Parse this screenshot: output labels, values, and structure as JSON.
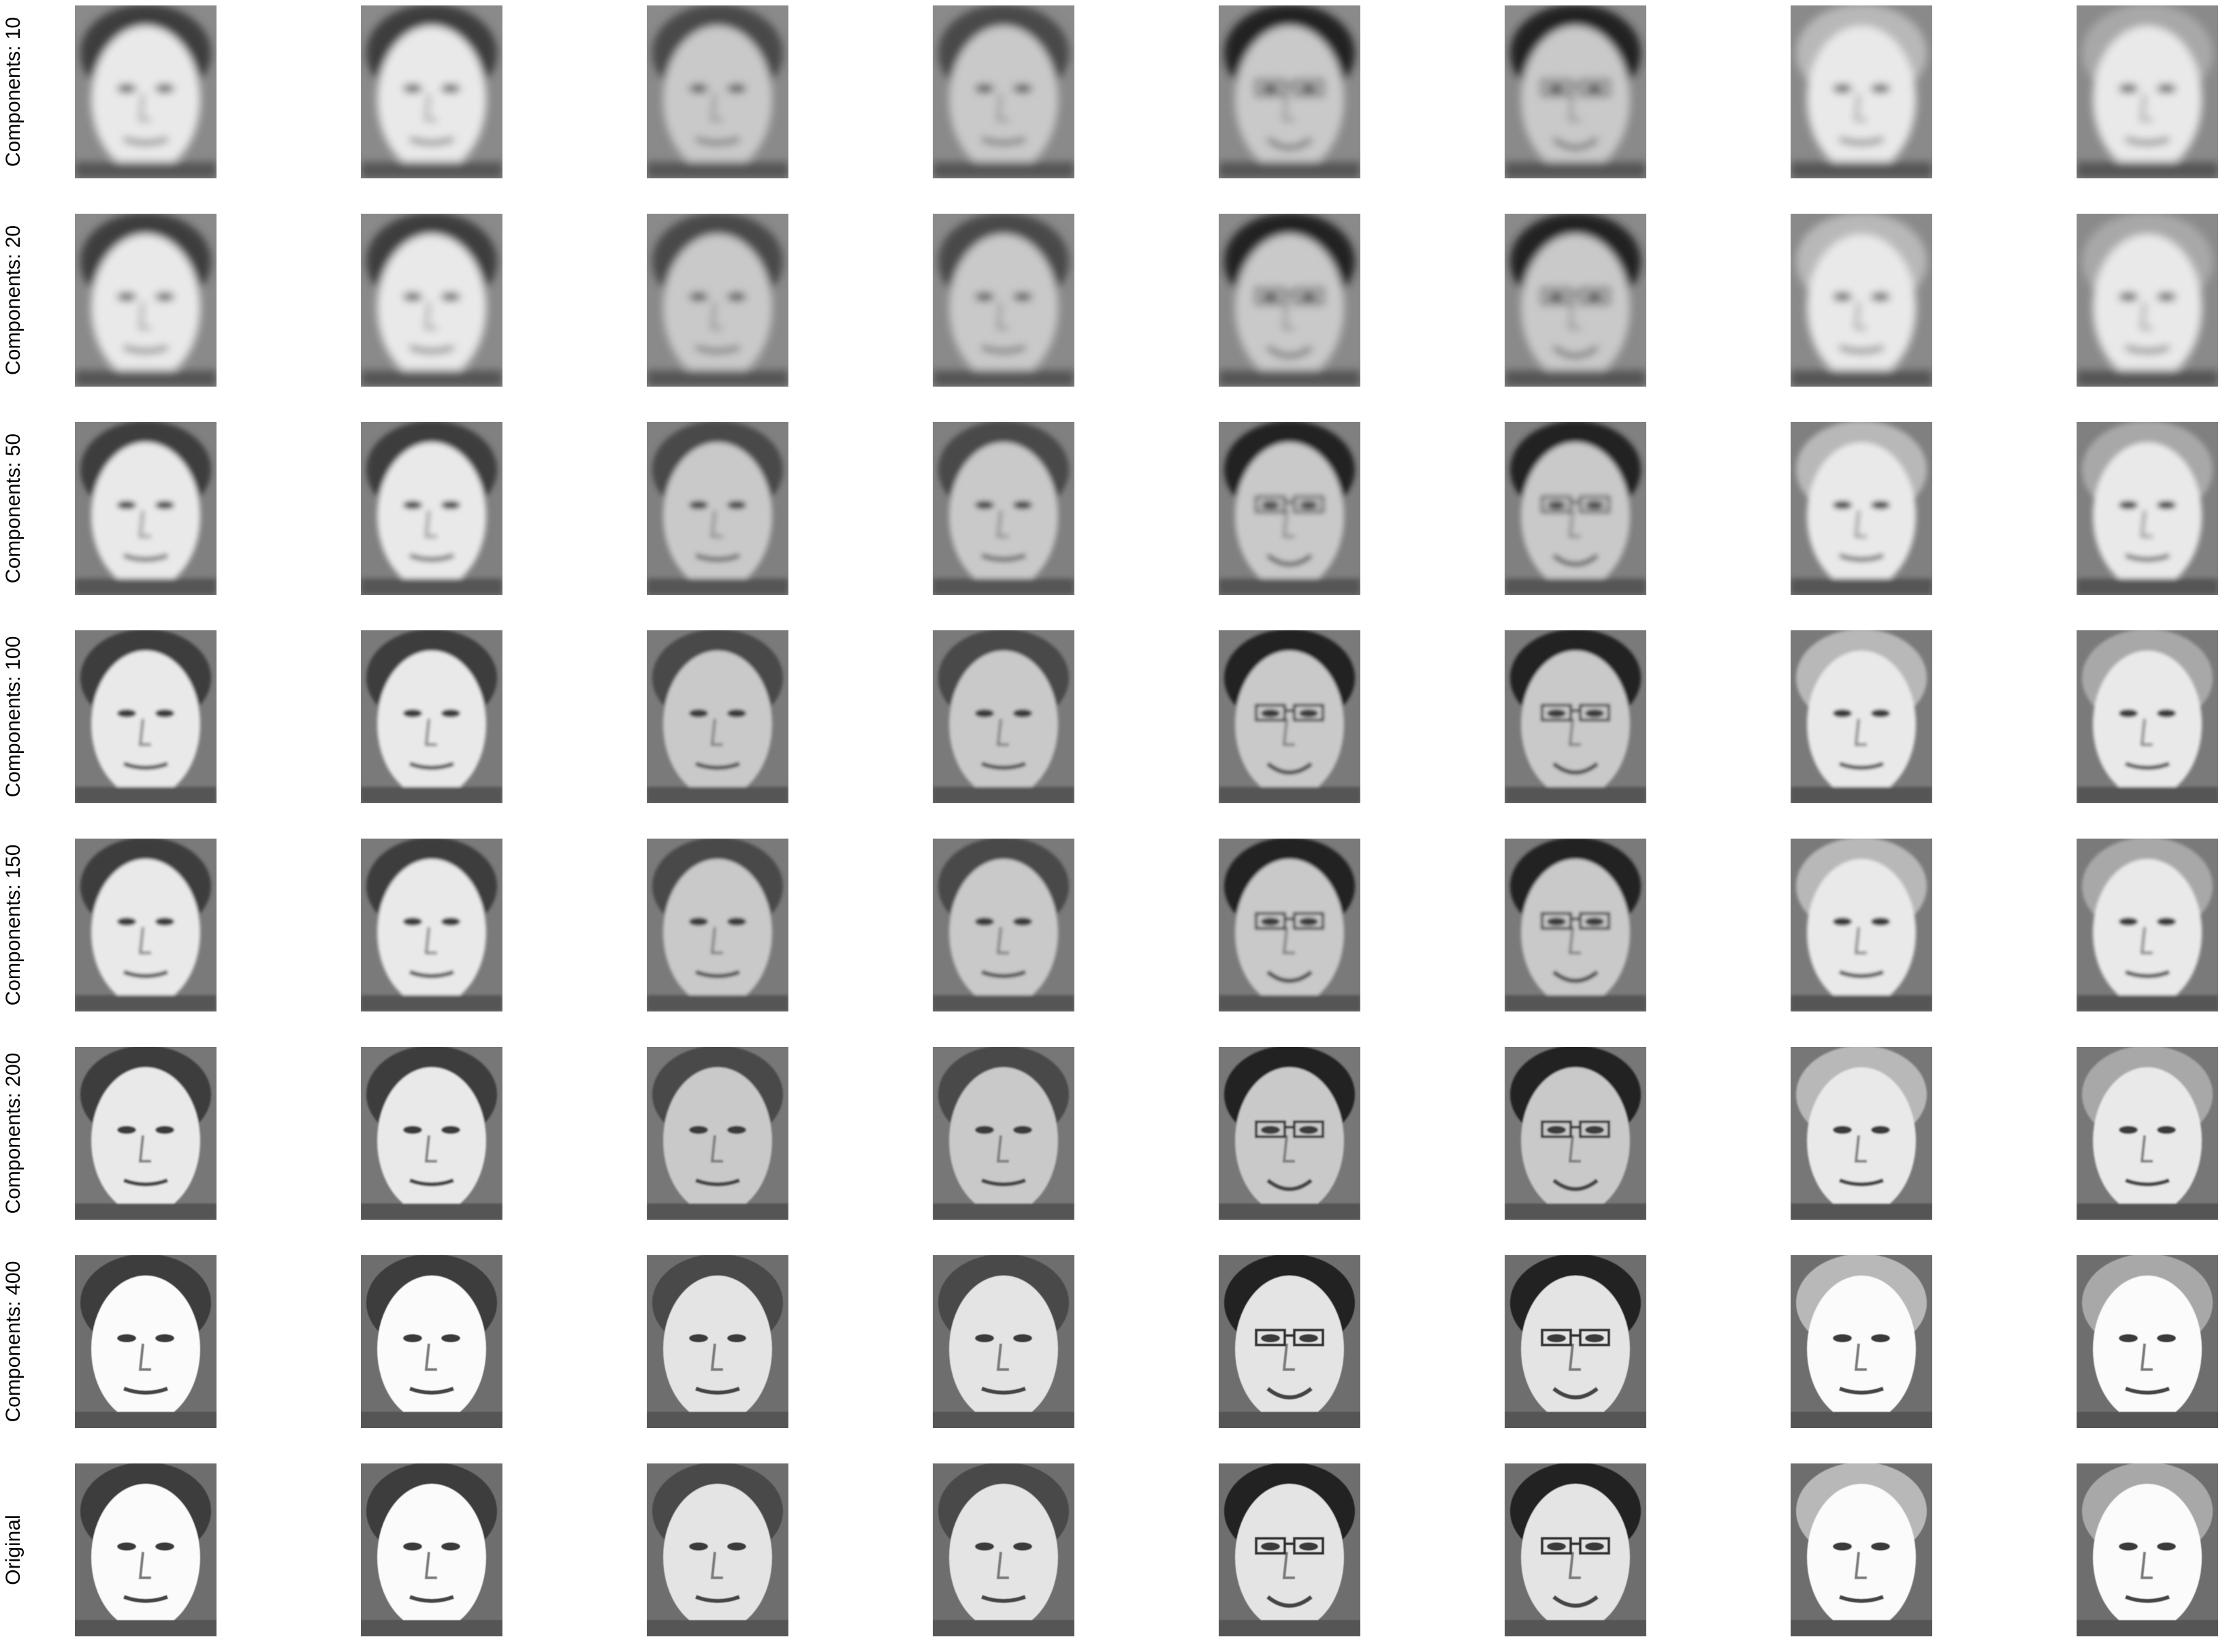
{
  "figure": {
    "rows": [
      {
        "label": "Components: 10",
        "variant": "blur-heavy"
      },
      {
        "label": "Components: 20",
        "variant": "blur-heavy"
      },
      {
        "label": "Components: 50",
        "variant": "blur-medium"
      },
      {
        "label": "Components: 100",
        "variant": "blur-light"
      },
      {
        "label": "Components: 150",
        "variant": "blur-light"
      },
      {
        "label": "Components: 200",
        "variant": "sharp"
      },
      {
        "label": "Components: 400",
        "variant": "original"
      },
      {
        "label": "Original",
        "variant": "original"
      }
    ],
    "columns": [
      {
        "tone": "light",
        "hair": "short",
        "glasses": false
      },
      {
        "tone": "light",
        "hair": "short",
        "glasses": false
      },
      {
        "tone": "medium",
        "hair": "side",
        "glasses": false
      },
      {
        "tone": "medium",
        "hair": "side",
        "glasses": false
      },
      {
        "tone": "medium",
        "hair": "dark",
        "glasses": true
      },
      {
        "tone": "medium",
        "hair": "dark",
        "glasses": true
      },
      {
        "tone": "light",
        "hair": "curly",
        "glasses": false
      },
      {
        "tone": "light",
        "hair": "long",
        "glasses": false
      }
    ]
  }
}
